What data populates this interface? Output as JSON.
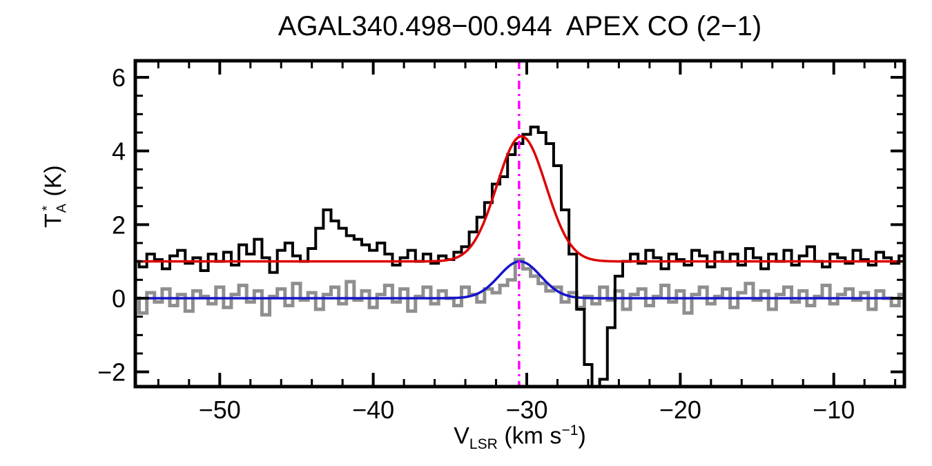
{
  "page": {
    "background": "#ffffff"
  },
  "chart_data": {
    "type": "line",
    "title": "AGAL340.498−00.944  APEX CO (2−1)",
    "xlabel": {
      "base": "V",
      "sub": "LSR",
      "mid": " (km s",
      "sup": "−1",
      "end": ")"
    },
    "ylabel": {
      "base": "T",
      "sup": "*",
      "sub": "A",
      "rest": " (K)"
    },
    "xlim": [
      -55.5,
      -5.4
    ],
    "ylim": [
      -2.4,
      6.45
    ],
    "grid": false,
    "legend": "none",
    "xticks": {
      "values": [
        -50,
        -40,
        -30,
        -20,
        -10
      ],
      "labels": [
        "−50",
        "−40",
        "−30",
        "−20",
        "−10"
      ],
      "minor_step": 2
    },
    "yticks": {
      "values": [
        -2,
        0,
        2,
        4,
        6
      ],
      "labels": [
        "−2",
        "0",
        "2",
        "4",
        "6"
      ],
      "minor_step": 0.5
    },
    "x_start": -55.5,
    "dx": 0.5,
    "series": [
      {
        "name": "black-spectrum",
        "type": "histogram",
        "color": "#000000",
        "line_width": 4,
        "values": [
          1.0,
          0.85,
          1.2,
          1.05,
          0.8,
          1.15,
          1.3,
          0.95,
          1.1,
          0.75,
          1.2,
          1.0,
          1.25,
          0.9,
          1.45,
          1.2,
          1.6,
          1.1,
          0.7,
          1.3,
          1.5,
          1.15,
          1.0,
          1.35,
          1.9,
          2.4,
          2.1,
          1.9,
          1.7,
          1.6,
          1.45,
          1.3,
          1.5,
          1.2,
          0.9,
          1.1,
          1.3,
          1.0,
          1.2,
          0.95,
          1.15,
          1.05,
          1.25,
          1.4,
          1.8,
          2.2,
          2.6,
          3.1,
          3.3,
          3.9,
          4.2,
          4.45,
          4.65,
          4.5,
          4.2,
          3.6,
          2.4,
          1.2,
          -0.3,
          -1.8,
          -2.6,
          -2.2,
          -0.8,
          0.6,
          1.0,
          1.2,
          0.95,
          1.3,
          1.1,
          0.8,
          1.2,
          1.05,
          0.9,
          1.3,
          1.15,
          0.85,
          1.25,
          1.0,
          1.2,
          0.9,
          1.35,
          1.1,
          0.8,
          1.2,
          1.0,
          1.3,
          0.9,
          1.15,
          1.4,
          1.0,
          0.85,
          1.2,
          1.1,
          0.95,
          1.3,
          1.05,
          0.9,
          1.25,
          1.1,
          0.95,
          1.15
        ]
      },
      {
        "name": "gray-spectrum",
        "type": "histogram",
        "color": "#8f8f8f",
        "line_width": 5,
        "values": [
          0.0,
          -0.4,
          0.15,
          -0.1,
          0.25,
          -0.2,
          0.1,
          -0.35,
          0.2,
          0.05,
          -0.15,
          0.3,
          -0.25,
          0.1,
          0.35,
          -0.1,
          0.2,
          -0.45,
          0.05,
          0.25,
          -0.2,
          0.4,
          -0.05,
          0.15,
          -0.3,
          0.1,
          0.3,
          -0.15,
          0.45,
          -0.05,
          0.2,
          -0.25,
          0.1,
          0.35,
          -0.1,
          0.25,
          -0.35,
          0.05,
          0.3,
          -0.15,
          0.2,
          0.0,
          -0.2,
          0.3,
          0.1,
          -0.1,
          0.25,
          0.15,
          0.35,
          0.5,
          1.05,
          0.8,
          0.6,
          0.4,
          0.2,
          0.3,
          -0.1,
          0.15,
          -0.25,
          0.05,
          -0.15,
          0.3,
          -0.05,
          0.2,
          -0.3,
          0.1,
          0.25,
          -0.2,
          0.05,
          0.35,
          -0.1,
          0.2,
          -0.4,
          0.1,
          0.3,
          -0.15,
          0.05,
          0.25,
          -0.25,
          0.15,
          0.4,
          -0.05,
          0.2,
          -0.3,
          0.1,
          0.3,
          -0.1,
          0.2,
          -0.2,
          0.05,
          0.35,
          -0.15,
          0.1,
          0.25,
          -0.05,
          0.15,
          -0.3,
          0.2,
          0.0,
          -0.2,
          0.1
        ]
      },
      {
        "name": "red-gaussian-fit",
        "type": "gaussian",
        "color": "#dd0000",
        "line_width": 3.5,
        "baseline": 1.0,
        "amplitude": 3.4,
        "center": -30.35,
        "sigma": 1.6
      },
      {
        "name": "blue-gaussian-fit",
        "type": "gaussian",
        "color": "#1414cc",
        "line_width": 3.5,
        "baseline": 0.0,
        "amplitude": 1.0,
        "center": -30.45,
        "sigma": 1.35
      }
    ],
    "vline": {
      "x": -30.5,
      "color": "#ff00ff",
      "line_width": 3.5,
      "dash": [
        12,
        7,
        3,
        7
      ]
    }
  }
}
